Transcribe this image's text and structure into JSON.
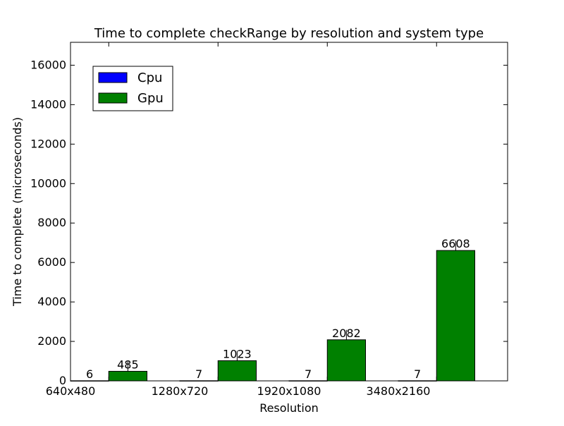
{
  "chart_data": {
    "type": "bar",
    "title": "Time to complete checkRange by resolution and system type",
    "xlabel": "Resolution",
    "ylabel": "Time to complete (microseconds)",
    "categories": [
      "640x480",
      "1280x720",
      "1920x1080",
      "3480x2160"
    ],
    "series": [
      {
        "name": "Cpu",
        "color": "#0000ff",
        "values": [
          6,
          7,
          7,
          7
        ],
        "labels": [
          "6",
          "7",
          "7",
          "7"
        ]
      },
      {
        "name": "Gpu",
        "color": "#008000",
        "values": [
          485,
          1023,
          2082,
          6608
        ],
        "labels": [
          "485",
          "1023",
          "2082",
          "6608"
        ]
      }
    ],
    "ylim": [
      0,
      17160
    ],
    "yticks": [
      0,
      2000,
      4000,
      6000,
      8000,
      10000,
      12000,
      14000,
      16000
    ],
    "ytick_labels": [
      "0",
      "2000",
      "4000",
      "6000",
      "8000",
      "10000",
      "12000",
      "14000",
      "16000"
    ],
    "legend_position": "top-left",
    "grid": false
  }
}
